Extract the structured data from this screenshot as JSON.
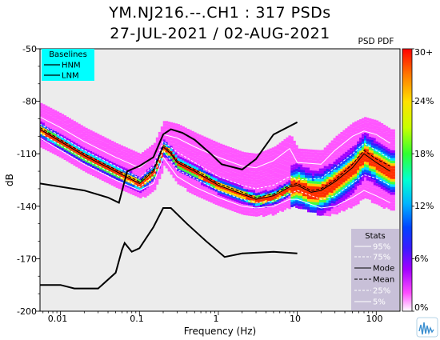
{
  "header": {
    "title_line1": "YM.NJ216.--.CH1 : 317 PSDs",
    "title_line2": "27-JUL-2021 / 02-AUG-2021"
  },
  "colorbar": {
    "title": "PSD PDF",
    "tick_labels": [
      "0%",
      "6%",
      "12%",
      "18%",
      "24%",
      "30+"
    ],
    "range_percent": [
      0,
      30
    ]
  },
  "legend_baselines": {
    "title": "Baselines",
    "items": [
      "HNM",
      "LNM"
    ],
    "background": "#00ffff"
  },
  "legend_stats": {
    "title": "Stats",
    "items": [
      "95%",
      "75%",
      "Mode",
      "Mean",
      "25%",
      "5%"
    ],
    "background": "#c8c0d8"
  },
  "colors": {
    "plot_bg": "#ececec",
    "percentile_line": "#ffffff",
    "mode_line": "#000000",
    "mean_line": "#000000",
    "noise_model": "#000000"
  },
  "chart_data": {
    "type": "heatmap",
    "xlabel": "Frequency (Hz)",
    "ylabel": "dB",
    "xscale": "log",
    "xlim": [
      0.0055,
      200
    ],
    "ylim": [
      -200,
      -50
    ],
    "x_tick_values": [
      0.01,
      0.1,
      1,
      10,
      100
    ],
    "x_tick_labels": [
      "0.01",
      "0.1",
      "1",
      "10",
      "100"
    ],
    "y_tick_values": [
      -200,
      -170,
      -140,
      -110,
      -80,
      -50
    ],
    "y_tick_labels": [
      "-200",
      "-170",
      "-140",
      "-110",
      "-80",
      "-50"
    ],
    "grid": false,
    "series": [
      {
        "name": "HNM",
        "x": [
          0.0055,
          0.02,
          0.04,
          0.055,
          0.07,
          0.1,
          0.15,
          0.2,
          0.25,
          0.35,
          0.5,
          0.8,
          1.1,
          2,
          3,
          5,
          10
        ],
        "y": [
          -127,
          -131,
          -135,
          -138,
          -120,
          -117,
          -112,
          -99,
          -96,
          -98,
          -102,
          -110,
          -116,
          -119,
          -113,
          -99,
          -92
        ]
      },
      {
        "name": "LNM",
        "x": [
          0.0055,
          0.01,
          0.015,
          0.03,
          0.05,
          0.06,
          0.065,
          0.08,
          0.1,
          0.15,
          0.2,
          0.25,
          0.4,
          0.7,
          1.2,
          2,
          5,
          10
        ],
        "y": [
          -185,
          -185,
          -187,
          -187,
          -178,
          -165,
          -161,
          -166,
          -164,
          -152,
          -141,
          -141,
          -150,
          -160,
          -169,
          -167,
          -166,
          -167
        ]
      },
      {
        "name": "Mode",
        "x": [
          0.0055,
          0.01,
          0.02,
          0.05,
          0.1,
          0.15,
          0.2,
          0.25,
          0.3,
          0.5,
          1,
          2,
          3,
          5,
          8,
          10,
          15,
          20,
          30,
          50,
          70,
          100,
          150
        ],
        "y": [
          -96,
          -103,
          -111,
          -120,
          -127,
          -120,
          -106,
          -110,
          -115,
          -120,
          -128,
          -133,
          -136,
          -134,
          -129,
          -128,
          -132,
          -131,
          -126,
          -118,
          -110,
          -115,
          -120
        ]
      },
      {
        "name": "Mean",
        "x": [
          0.0055,
          0.01,
          0.02,
          0.05,
          0.1,
          0.15,
          0.2,
          0.25,
          0.3,
          0.5,
          1,
          2,
          3,
          5,
          8,
          10,
          15,
          20,
          30,
          50,
          70,
          100,
          150
        ],
        "y": [
          -95,
          -102,
          -110,
          -119,
          -126,
          -119,
          -105,
          -109,
          -114,
          -119,
          -127,
          -132,
          -135,
          -133,
          -128,
          -127,
          -131,
          -130,
          -125,
          -116,
          -108,
          -113,
          -117
        ]
      },
      {
        "name": "95%",
        "x": [
          0.0055,
          0.01,
          0.02,
          0.05,
          0.1,
          0.15,
          0.2,
          0.3,
          0.5,
          1,
          2,
          3,
          5,
          8,
          10,
          20,
          30,
          50,
          70,
          100,
          150
        ],
        "y": [
          -89,
          -95,
          -103,
          -112,
          -118,
          -112,
          -99,
          -101,
          -106,
          -112,
          -117,
          -118,
          -114,
          -107,
          -115,
          -116,
          -108,
          -100,
          -97,
          -99,
          -104
        ]
      },
      {
        "name": "75%",
        "x": [
          0.0055,
          0.01,
          0.02,
          0.05,
          0.1,
          0.15,
          0.2,
          0.3,
          0.5,
          1,
          2,
          3,
          5,
          8,
          10,
          20,
          30,
          50,
          70,
          100,
          150
        ],
        "y": [
          -93,
          -100,
          -108,
          -117,
          -124,
          -117,
          -103,
          -109,
          -115,
          -123,
          -128,
          -130,
          -128,
          -123,
          -125,
          -124,
          -118,
          -110,
          -104,
          -108,
          -113
        ]
      },
      {
        "name": "25%",
        "x": [
          0.0055,
          0.01,
          0.02,
          0.05,
          0.1,
          0.15,
          0.2,
          0.3,
          0.5,
          1,
          2,
          3,
          5,
          8,
          10,
          20,
          30,
          50,
          70,
          100,
          150
        ],
        "y": [
          -98,
          -105,
          -113,
          -122,
          -129,
          -123,
          -108,
          -119,
          -124,
          -131,
          -136,
          -138,
          -137,
          -133,
          -131,
          -136,
          -134,
          -127,
          -122,
          -124,
          -128
        ]
      },
      {
        "name": "5%",
        "x": [
          0.0055,
          0.01,
          0.02,
          0.05,
          0.1,
          0.15,
          0.2,
          0.3,
          0.5,
          1,
          2,
          3,
          5,
          8,
          10,
          20,
          30,
          50,
          70,
          100,
          150
        ],
        "y": [
          -101,
          -108,
          -116,
          -125,
          -131,
          -127,
          -112,
          -123,
          -129,
          -135,
          -140,
          -141,
          -140,
          -136,
          -136,
          -141,
          -140,
          -135,
          -131,
          -134,
          -138
        ]
      }
    ]
  }
}
